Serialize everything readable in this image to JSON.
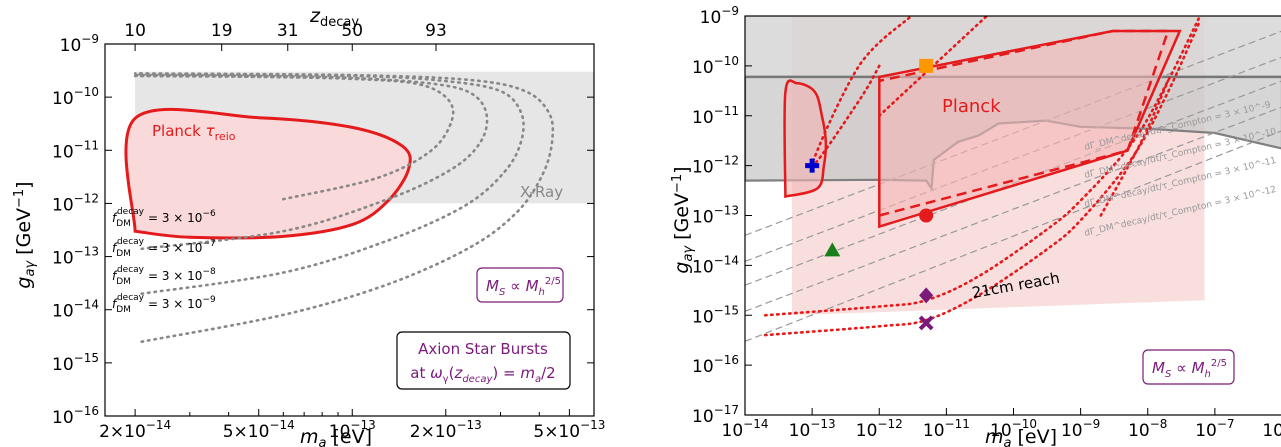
{
  "chart_data": [
    {
      "type": "area",
      "xlabel": "m_a [eV]",
      "ylabel": "g_aγ [GeV^-1]",
      "top_xlabel": "z_decay",
      "xscale": "log",
      "yscale": "log",
      "xlim": [
        1.6e-14,
        6e-13
      ],
      "ylim": [
        1e-16,
        1e-09
      ],
      "x_ticks": [
        {
          "v": 2e-14,
          "label": "2×10^-14"
        },
        {
          "v": 5e-14,
          "label": "5×10^-14"
        },
        {
          "v": 1e-13,
          "label": "10^-13"
        },
        {
          "v": 2e-13,
          "label": "2×10^-13"
        },
        {
          "v": 5e-13,
          "label": "5×10^-13"
        }
      ],
      "y_ticks": [
        {
          "v": 1e-16,
          "label": "10^-16"
        },
        {
          "v": 1e-15,
          "label": "10^-15"
        },
        {
          "v": 1e-14,
          "label": "10^-14"
        },
        {
          "v": 1e-13,
          "label": "10^-13"
        },
        {
          "v": 1e-12,
          "label": "10^-12"
        },
        {
          "v": 1e-11,
          "label": "10^-11"
        },
        {
          "v": 1e-10,
          "label": "10^-10"
        },
        {
          "v": 1e-09,
          "label": "10^-9"
        }
      ],
      "top_ticks": [
        {
          "v": 2e-14,
          "label": "10"
        },
        {
          "v": 3.8e-14,
          "label": "19"
        },
        {
          "v": 6.2e-14,
          "label": "31"
        },
        {
          "v": 1e-13,
          "label": "50"
        },
        {
          "v": 1.86e-13,
          "label": "93"
        }
      ],
      "regions": [
        {
          "name": "X-Ray",
          "color": "#d9d9d9",
          "points": [
            [
              2e-14,
              1e-12
            ],
            [
              6e-13,
              1e-12
            ],
            [
              6e-13,
              3e-10
            ],
            [
              2e-14,
              3e-10
            ]
          ]
        },
        {
          "name": "Planck τ_reio",
          "color": "#e41a1c",
          "points": [
            [
              2e-14,
              3e-13
            ],
            [
              3e-14,
              2.3e-13
            ],
            [
              6e-14,
              2.4e-13
            ],
            [
              1e-13,
              4e-13
            ],
            [
              1.3e-13,
              1.1e-12
            ],
            [
              1.52e-13,
              4.5e-12
            ],
            [
              1.45e-13,
              1.2e-11
            ],
            [
              1e-13,
              2.7e-11
            ],
            [
              5e-14,
              4.1e-11
            ],
            [
              2e-14,
              4e-11
            ]
          ]
        }
      ],
      "contours": [
        {
          "name": "f_DM^decay = 3×10^-6",
          "points": [
            [
              6e-14,
              1.2e-12
            ],
            [
              1.2e-13,
              3e-12
            ],
            [
              1.8e-13,
              1e-11
            ],
            [
              2.1e-13,
              4e-11
            ],
            [
              2e-13,
              1e-10
            ],
            [
              1.6e-13,
              1.8e-10
            ],
            [
              1e-13,
              2.2e-10
            ],
            [
              5e-14,
              2.4e-10
            ],
            [
              2e-14,
              2.5e-10
            ]
          ]
        },
        {
          "name": "f_DM^decay = 3×10^-7",
          "points": [
            [
              2.1e-14,
              1.4e-13
            ],
            [
              6e-14,
              3e-13
            ],
            [
              1.3e-13,
              1.2e-12
            ],
            [
              2.1e-13,
              4.5e-12
            ],
            [
              2.6e-13,
              1.5e-11
            ],
            [
              2.7e-13,
              5e-11
            ],
            [
              2.4e-13,
              1.2e-10
            ],
            [
              1.8e-13,
              1.8e-10
            ],
            [
              1e-13,
              2.3e-10
            ],
            [
              5e-14,
              2.5e-10
            ],
            [
              2e-14,
              2.6e-10
            ]
          ]
        },
        {
          "name": "f_DM^decay = 3×10^-8",
          "points": [
            [
              2.1e-14,
              2e-14
            ],
            [
              6e-14,
              5e-14
            ],
            [
              1.3e-13,
              2e-13
            ],
            [
              2.3e-13,
              9e-13
            ],
            [
              3.1e-13,
              4e-12
            ],
            [
              3.5e-13,
              1.5e-11
            ],
            [
              3.5e-13,
              5e-11
            ],
            [
              3e-13,
              1.3e-10
            ],
            [
              2e-13,
              2e-10
            ],
            [
              1e-13,
              2.5e-10
            ],
            [
              2e-14,
              2.7e-10
            ]
          ]
        },
        {
          "name": "f_DM^decay = 3×10^-9",
          "points": [
            [
              2.1e-14,
              2.5e-15
            ],
            [
              6e-14,
              8e-15
            ],
            [
              1.3e-13,
              3e-14
            ],
            [
              2.4e-13,
              1.5e-13
            ],
            [
              3.4e-13,
              7e-13
            ],
            [
              4.1e-13,
              3.5e-12
            ],
            [
              4.4e-13,
              1.5e-11
            ],
            [
              4.3e-13,
              5e-11
            ],
            [
              3.6e-13,
              1.3e-10
            ],
            [
              2.4e-13,
              2.1e-10
            ],
            [
              1e-13,
              2.6e-10
            ],
            [
              2e-14,
              2.8e-10
            ]
          ]
        }
      ],
      "annotations": {
        "planck": "Planck τ_reio",
        "xray": "X-Ray",
        "f1": "= 3 × 10^-6",
        "f2": "= 3 × 10^-7",
        "f3": "= 3 × 10^-8",
        "f4": "= 3 × 10^-9",
        "f_sym": "f_DM^decay",
        "ms_box": "M_S ∝ M_h^2/5",
        "axion_line1": "Axion Star Bursts",
        "axion_line2": "at ω_γ(z_decay) = m_a/2"
      }
    },
    {
      "type": "area",
      "xlabel": "m_a [eV]",
      "ylabel": "g_aγ [GeV^-1]",
      "xscale": "log",
      "yscale": "log",
      "xlim": [
        1e-14,
        1e-06
      ],
      "ylim": [
        1e-17,
        1e-09
      ],
      "x_ticks": [
        {
          "v": 1e-14,
          "label": "10^-14"
        },
        {
          "v": 1e-13,
          "label": "10^-13"
        },
        {
          "v": 1e-12,
          "label": "10^-12"
        },
        {
          "v": 1e-11,
          "label": "10^-11"
        },
        {
          "v": 1e-10,
          "label": "10^-10"
        },
        {
          "v": 1e-09,
          "label": "10^-9"
        },
        {
          "v": 1e-08,
          "label": "10^-8"
        },
        {
          "v": 1e-07,
          "label": "10^-7"
        },
        {
          "v": 1e-06,
          "label": "10^-6"
        }
      ],
      "y_ticks": [
        {
          "v": 1e-17,
          "label": "10^-17"
        },
        {
          "v": 1e-16,
          "label": "10^-16"
        },
        {
          "v": 1e-15,
          "label": "10^-15"
        },
        {
          "v": 1e-14,
          "label": "10^-14"
        },
        {
          "v": 1e-13,
          "label": "10^-13"
        },
        {
          "v": 1e-12,
          "label": "10^-12"
        },
        {
          "v": 1e-11,
          "label": "10^-11"
        },
        {
          "v": 1e-10,
          "label": "10^-10"
        },
        {
          "v": 1e-09,
          "label": "10^-9"
        }
      ],
      "regions": [
        {
          "name": "upper-band",
          "color": "#d0d0d0",
          "points": [
            [
              1e-14,
              6e-11
            ],
            [
              1e-06,
              6e-11
            ],
            [
              1e-06,
              1e-09
            ],
            [
              1e-14,
              1e-09
            ]
          ]
        },
        {
          "name": "gray-excluded",
          "color": "#bdbdbd",
          "points": [
            [
              1e-14,
              5e-13
            ],
            [
              1e-12,
              5.2e-13
            ],
            [
              5e-12,
              5e-13
            ],
            [
              6e-12,
              3.5e-13
            ],
            [
              6.5e-12,
              1.3e-12
            ],
            [
              1.5e-11,
              3e-12
            ],
            [
              3e-11,
              4e-12
            ],
            [
              6e-11,
              7e-12
            ],
            [
              3e-10,
              8e-12
            ],
            [
              1e-09,
              6e-12
            ],
            [
              1e-08,
              5.5e-12
            ],
            [
              1e-07,
              4.5e-12
            ],
            [
              1e-06,
              2.2e-12
            ],
            [
              1e-06,
              6e-11
            ],
            [
              1e-14,
              6e-11
            ]
          ]
        },
        {
          "name": "light-red-band",
          "color": "#f6d0d0",
          "points": [
            [
              5e-14,
              1e-15
            ],
            [
              5e-14,
              1e-09
            ],
            [
              7e-08,
              1e-09
            ],
            [
              7e-08,
              2e-15
            ]
          ]
        },
        {
          "name": "Planck",
          "color": "#e41a1c",
          "points": [
            [
              1e-12,
              6e-14
            ],
            [
              5e-09,
              2e-12
            ],
            [
              3e-08,
              5e-10
            ],
            [
              3e-09,
              5e-10
            ],
            [
              1e-12,
              6e-11
            ]
          ]
        },
        {
          "name": "planck-small",
          "color": "#e41a1c",
          "points": [
            [
              4e-14,
              2.4e-13
            ],
            [
              1.2e-13,
              3.5e-13
            ],
            [
              1.5e-13,
              1e-12
            ],
            [
              1.6e-13,
              3e-12
            ],
            [
              1.4e-13,
              1e-11
            ],
            [
              1.1e-13,
              3e-11
            ],
            [
              6e-14,
              4.5e-11
            ],
            [
              4e-14,
              3e-11
            ]
          ]
        }
      ],
      "points": [
        {
          "name": "square",
          "x": 5e-12,
          "y": 1e-10,
          "color": "#ff9800"
        },
        {
          "name": "cross-plus",
          "x": 1e-13,
          "y": 1e-12,
          "color": "#0000cc"
        },
        {
          "name": "circle",
          "x": 5e-12,
          "y": 1e-13,
          "color": "#e41a1c"
        },
        {
          "name": "triangle",
          "x": 2e-13,
          "y": 2e-14,
          "color": "#1a7f1a"
        },
        {
          "name": "diamond",
          "x": 5e-12,
          "y": 2.5e-15,
          "color": "#7b1a7b"
        },
        {
          "name": "x-mark",
          "x": 5e-12,
          "y": 7e-16,
          "color": "#7b1a7b"
        }
      ],
      "annotations": {
        "planck": "Planck",
        "reach": "21cm reach",
        "ms_box": "M_S ∝ M_h^2/5",
        "g1": "dΓ_DM^decay/dt/τ_Compton = 3 × 10^-9",
        "g2": "dΓ_DM^decay/dt/τ_Compton = 3 × 10^-10",
        "g3": "dΓ_DM^decay/dt/τ_Compton = 3 × 10^-11",
        "g4": "dΓ_DM^decay/dt/τ_Compton = 3 × 10^-12"
      }
    }
  ]
}
